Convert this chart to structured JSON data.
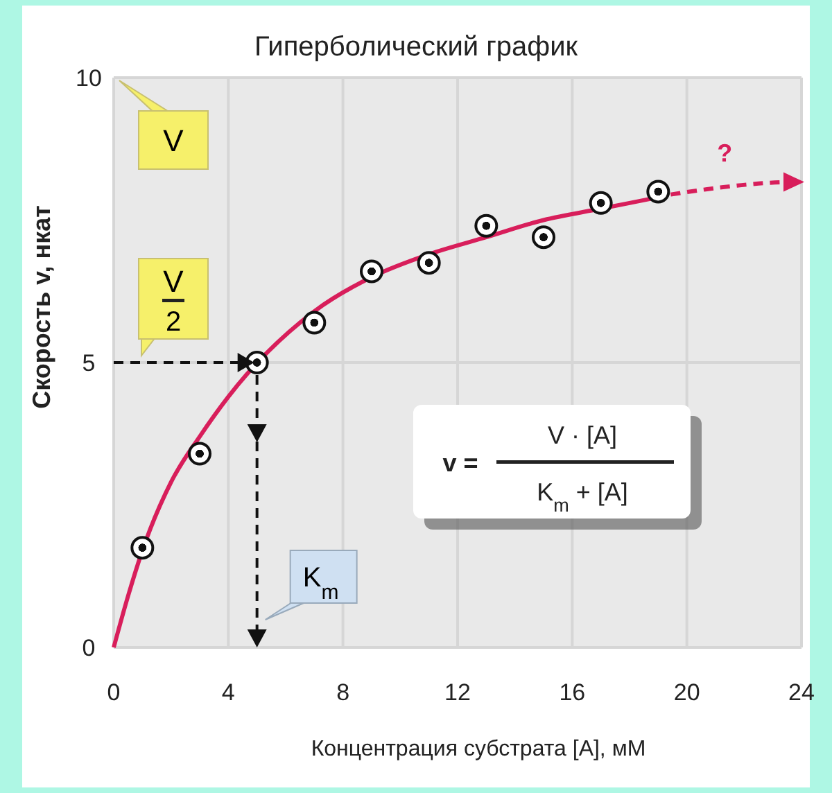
{
  "chart_data": {
    "type": "scatter",
    "title": "Гиперболический график",
    "xlabel": "Концентрация субстрата [A], мМ",
    "ylabel": "Скорость v, нкат",
    "xlim": [
      0,
      24
    ],
    "ylim": [
      0,
      10
    ],
    "xticks": [
      0,
      4,
      8,
      12,
      16,
      20,
      24
    ],
    "yticks": [
      0,
      5,
      10
    ],
    "grid": true,
    "series": [
      {
        "type": "line",
        "color": "#d81e5b",
        "line_style": "solid",
        "x": [
          0,
          0.5,
          1,
          2,
          3,
          4,
          5,
          7,
          9,
          11,
          13,
          15,
          17,
          19
        ],
        "values": [
          0,
          0.9,
          1.7,
          2.9,
          3.7,
          4.4,
          null,
          5.9,
          6.5,
          6.9,
          7.2,
          7.5,
          7.7,
          7.9
        ]
      },
      {
        "color": "#111111",
        "marker": "circle",
        "x": [
          1,
          3,
          5,
          7,
          9,
          11,
          13,
          15,
          17,
          19
        ],
        "values": [
          1.75,
          3.4,
          5,
          5.7,
          6.6,
          6.75,
          7.4,
          7.2,
          7.8,
          8
        ]
      }
    ],
    "annotations": [
      "V",
      "V",
      "2",
      "K$_{m}$",
      "?",
      "v =",
      "V · [A]",
      "K$_{m}$ + [A]"
    ]
  }
}
